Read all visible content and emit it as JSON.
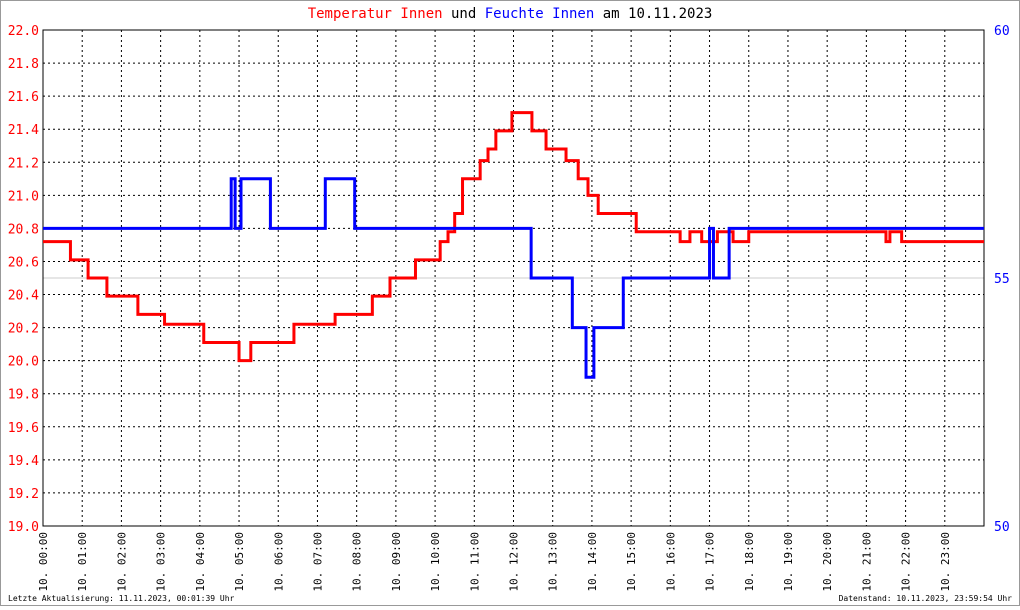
{
  "chart_data": {
    "type": "line",
    "title_connector": "und",
    "title_suffix": "am 10.11.2023",
    "footer_left": "Letzte Aktualisierung: 11.11.2023, 00:01:39 Uhr",
    "footer_right": "Datenstand: 10.11.2023, 23:59:54 Uhr",
    "grid": true,
    "xlim": [
      0,
      24
    ],
    "xticks": [
      {
        "value": 0,
        "label": "10. 00:00"
      },
      {
        "value": 1,
        "label": "10. 01:00"
      },
      {
        "value": 2,
        "label": "10. 02:00"
      },
      {
        "value": 3,
        "label": "10. 03:00"
      },
      {
        "value": 4,
        "label": "10. 04:00"
      },
      {
        "value": 5,
        "label": "10. 05:00"
      },
      {
        "value": 6,
        "label": "10. 06:00"
      },
      {
        "value": 7,
        "label": "10. 07:00"
      },
      {
        "value": 8,
        "label": "10. 08:00"
      },
      {
        "value": 9,
        "label": "10. 09:00"
      },
      {
        "value": 10,
        "label": "10. 10:00"
      },
      {
        "value": 11,
        "label": "10. 11:00"
      },
      {
        "value": 12,
        "label": "10. 12:00"
      },
      {
        "value": 13,
        "label": "10. 13:00"
      },
      {
        "value": 14,
        "label": "10. 14:00"
      },
      {
        "value": 15,
        "label": "10. 15:00"
      },
      {
        "value": 16,
        "label": "10. 16:00"
      },
      {
        "value": 17,
        "label": "10. 17:00"
      },
      {
        "value": 18,
        "label": "10. 18:00"
      },
      {
        "value": 19,
        "label": "10. 19:00"
      },
      {
        "value": 20,
        "label": "10. 20:00"
      },
      {
        "value": 21,
        "label": "10. 21:00"
      },
      {
        "value": 22,
        "label": "10. 22:00"
      },
      {
        "value": 23,
        "label": "10. 23:00"
      }
    ],
    "ylim": [
      19.0,
      22.0
    ],
    "yticks": [
      {
        "value": 19.0,
        "label": "19.0"
      },
      19.2,
      19.4,
      19.6,
      19.8,
      {
        "value": 20.0,
        "label": "20.0"
      },
      20.2,
      20.4,
      20.6,
      20.8,
      {
        "value": 21.0,
        "label": "21.0"
      },
      21.2,
      21.4,
      21.6,
      21.8,
      {
        "value": 22.0,
        "label": "22.0"
      }
    ],
    "y2lim": [
      50,
      60
    ],
    "y2ticks": [
      50,
      55,
      60
    ],
    "series": [
      {
        "name": "Temperatur Innen",
        "color": "#ff0000",
        "x": [
          0,
          0.7,
          0.7,
          1.15,
          1.15,
          1.63,
          1.63,
          2.42,
          2.42,
          3.1,
          3.1,
          4.1,
          4.1,
          5.0,
          5.0,
          5.3,
          5.3,
          6.4,
          6.4,
          7.45,
          7.45,
          8.4,
          8.4,
          8.85,
          8.85,
          9.5,
          9.5,
          10.13,
          10.13,
          10.33,
          10.33,
          10.5,
          10.5,
          10.7,
          10.7,
          11.15,
          11.15,
          11.35,
          11.35,
          11.55,
          11.55,
          11.96,
          11.96,
          12.47,
          12.47,
          12.83,
          12.83,
          13.34,
          13.34,
          13.65,
          13.65,
          13.9,
          13.9,
          14.16,
          14.16,
          15.13,
          15.13,
          16.25,
          16.25,
          16.5,
          16.5,
          16.8,
          16.8,
          17.2,
          17.2,
          17.6,
          17.6,
          18.0,
          18.0,
          21.5,
          21.5,
          21.6,
          21.6,
          21.9,
          21.9,
          24
        ],
        "values": [
          20.72,
          20.72,
          20.61,
          20.61,
          20.5,
          20.5,
          20.39,
          20.39,
          20.28,
          20.28,
          20.22,
          20.22,
          20.11,
          20.11,
          20.0,
          20.0,
          20.11,
          20.11,
          20.22,
          20.22,
          20.28,
          20.28,
          20.39,
          20.39,
          20.5,
          20.5,
          20.61,
          20.61,
          20.72,
          20.72,
          20.78,
          20.78,
          20.89,
          20.89,
          21.1,
          21.1,
          21.21,
          21.21,
          21.28,
          21.28,
          21.39,
          21.39,
          21.5,
          21.5,
          21.39,
          21.39,
          21.28,
          21.28,
          21.21,
          21.21,
          21.1,
          21.1,
          21.0,
          21.0,
          20.89,
          20.89,
          20.78,
          20.78,
          20.72,
          20.72,
          20.78,
          20.78,
          20.72,
          20.72,
          20.78,
          20.78,
          20.72,
          20.72,
          20.78,
          20.78,
          20.72,
          20.72,
          20.78,
          20.78,
          20.72,
          20.72
        ]
      },
      {
        "name": "Feuchte Innen",
        "color": "#0000ff",
        "axis": "y2",
        "x": [
          0,
          4.8,
          4.8,
          4.9,
          4.9,
          5.05,
          5.05,
          5.8,
          5.8,
          7.2,
          7.2,
          7.95,
          7.95,
          12.45,
          12.45,
          13.5,
          13.5,
          13.85,
          13.85,
          14.05,
          14.05,
          14.8,
          14.8,
          17.0,
          17.0,
          17.1,
          17.1,
          17.5,
          17.5,
          24
        ],
        "values": [
          56,
          56,
          57,
          57,
          56,
          56,
          57,
          57,
          56,
          56,
          57,
          57,
          56,
          56,
          55,
          55,
          54,
          54,
          53,
          53,
          54,
          54,
          55,
          55,
          56,
          56,
          55,
          55,
          56,
          56
        ]
      }
    ]
  }
}
